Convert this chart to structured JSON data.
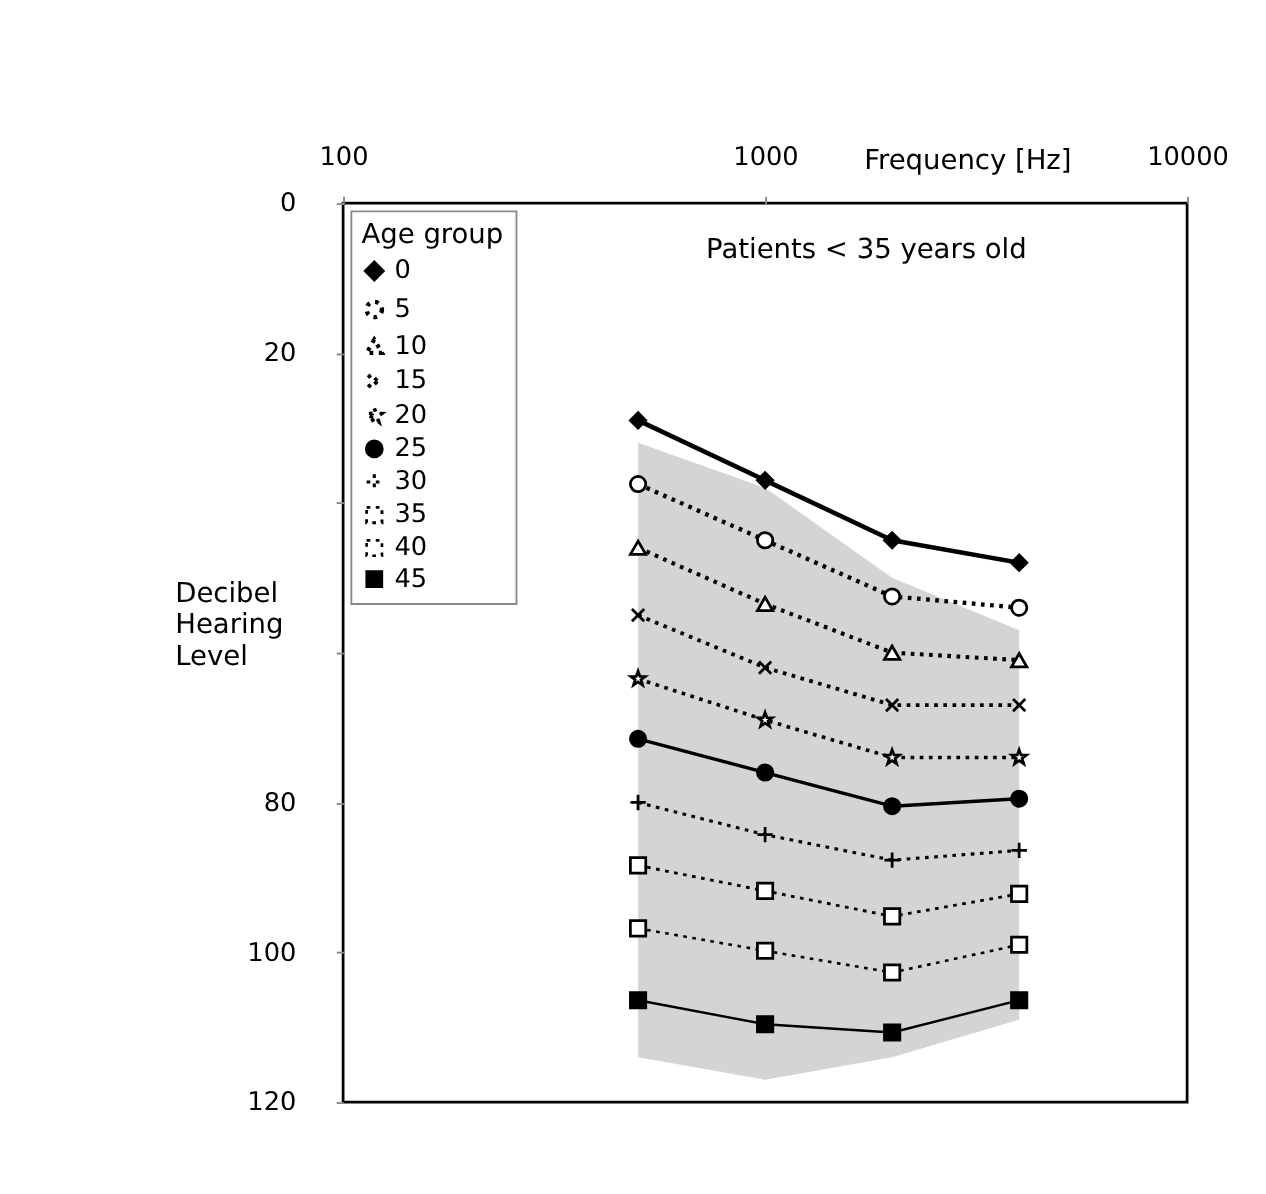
{
  "chart_data": {
    "type": "line",
    "xlabel": "Frequency [Hz]",
    "ylabel": "Decibel Hearing Level",
    "legend_title": "Age group",
    "annotations": [
      "Patients < 35 years old"
    ],
    "x": [
      500,
      1000,
      2000,
      4000
    ],
    "xlim": [
      100,
      10000
    ],
    "xticks": [
      100,
      1000,
      10000
    ],
    "log": "x",
    "ylim": [
      120,
      0
    ],
    "yticks": [
      0,
      20,
      {
        "value": 40,
        "label": null
      },
      {
        "value": 60,
        "label": null
      },
      80,
      100,
      120
    ],
    "grid": false,
    "legend": "top left",
    "series": [
      {
        "name": "0",
        "color": "#000000",
        "values": [
          29,
          37,
          45,
          48
        ],
        "marker": "diamond",
        "line_style": "solid"
      },
      {
        "name": "5",
        "color": "#000000",
        "values": [
          37.5,
          45,
          52.5,
          54
        ],
        "marker": "circle",
        "line_style": "dotted"
      },
      {
        "name": "10",
        "color": "#000000",
        "values": [
          46,
          53.5,
          60,
          61
        ],
        "marker": "triangle",
        "line_style": "dotted"
      },
      {
        "name": "15",
        "color": "#000000",
        "values": [
          55,
          62,
          67,
          67
        ],
        "marker": "x",
        "line_style": "dotted"
      },
      {
        "name": "20",
        "color": "#000000",
        "values": [
          63.5,
          69,
          74,
          74
        ],
        "marker": "star",
        "line_style": "dotted"
      },
      {
        "name": "25",
        "color": "#000000",
        "values": [
          71.5,
          76,
          80.5,
          79.5
        ],
        "marker": "circle",
        "line_style": "solid",
        "upper": [
          32,
          38,
          50,
          57
        ],
        "lower": [
          114,
          117,
          114,
          109
        ]
      },
      {
        "name": "30",
        "color": "#000000",
        "values": [
          80,
          84.3,
          87.7,
          86.4
        ],
        "marker": "cross",
        "line_style": "dotted"
      },
      {
        "name": "35",
        "color": "#000000",
        "values": [
          88.4,
          91.8,
          95.2,
          92.2
        ],
        "marker": "square",
        "line_style": "dotted"
      },
      {
        "name": "40",
        "color": "#000000",
        "values": [
          96.8,
          99.8,
          102.7,
          99
        ],
        "marker": "square",
        "line_style": "dotted"
      },
      {
        "name": "45",
        "color": "#000000",
        "values": [
          106.4,
          109.6,
          110.7,
          106.4
        ],
        "marker": "square",
        "line_style": "solid"
      }
    ]
  }
}
